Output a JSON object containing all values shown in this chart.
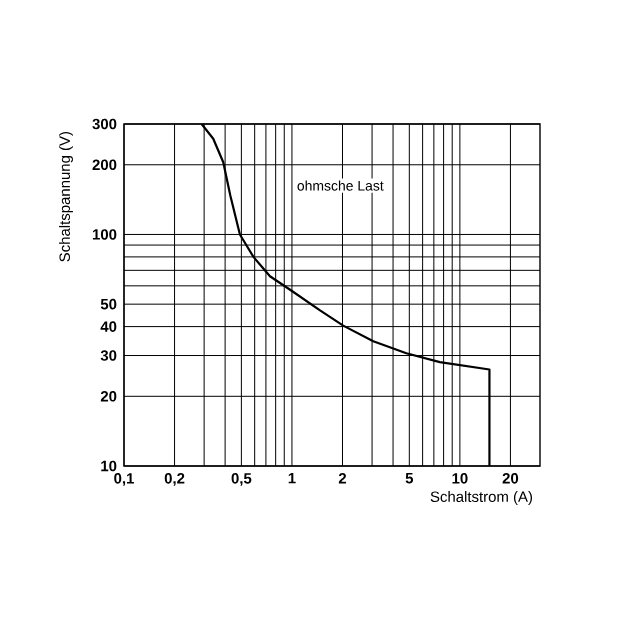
{
  "chart_data": {
    "type": "line",
    "xlabel": "Schaltstrom (A)",
    "ylabel": "Schaltspannung (V)",
    "annotations": [
      "ohmsche Last"
    ],
    "log": "xy",
    "grid": true,
    "marker": "none",
    "line_style": "solid",
    "x": [
      0.29,
      0.34,
      0.39,
      0.43,
      0.49,
      0.59,
      0.74,
      1,
      1.47,
      2.02,
      3.05,
      4.8,
      7.6,
      15,
      15
    ],
    "series": [
      {
        "color": "#000000",
        "values": [
          300,
          259,
          205,
          147,
          100,
          80,
          66,
          57,
          47,
          40.4,
          34.6,
          30.7,
          28.1,
          26.1,
          10
        ]
      }
    ],
    "xlim": [
      0.1,
      30
    ],
    "ylim": [
      10,
      300
    ],
    "xticks": [
      {
        "value": 0.1,
        "label": "0,1"
      },
      {
        "value": 0.2,
        "label": "0,2"
      },
      {
        "value": 0.3,
        "label": null
      },
      {
        "value": 0.4,
        "label": null
      },
      {
        "value": 0.5,
        "label": "0,5"
      },
      {
        "value": 0.6,
        "label": null
      },
      {
        "value": 0.7,
        "label": null
      },
      {
        "value": 0.8,
        "label": null
      },
      {
        "value": 0.9,
        "label": null
      },
      {
        "value": 1,
        "label": "1"
      },
      {
        "value": 2,
        "label": "2"
      },
      {
        "value": 3,
        "label": null
      },
      {
        "value": 4,
        "label": null
      },
      {
        "value": 5,
        "label": "5"
      },
      {
        "value": 6,
        "label": null
      },
      {
        "value": 7,
        "label": null
      },
      {
        "value": 8,
        "label": null
      },
      {
        "value": 9,
        "label": null
      },
      {
        "value": 10,
        "label": "10"
      },
      {
        "value": 20,
        "label": "20"
      }
    ],
    "yticks": [
      10,
      20,
      30,
      40,
      50,
      {
        "value": 60,
        "label": null
      },
      {
        "value": 70,
        "label": null
      },
      {
        "value": 80,
        "label": null
      },
      {
        "value": 90,
        "label": null
      },
      100,
      200,
      300
    ]
  }
}
